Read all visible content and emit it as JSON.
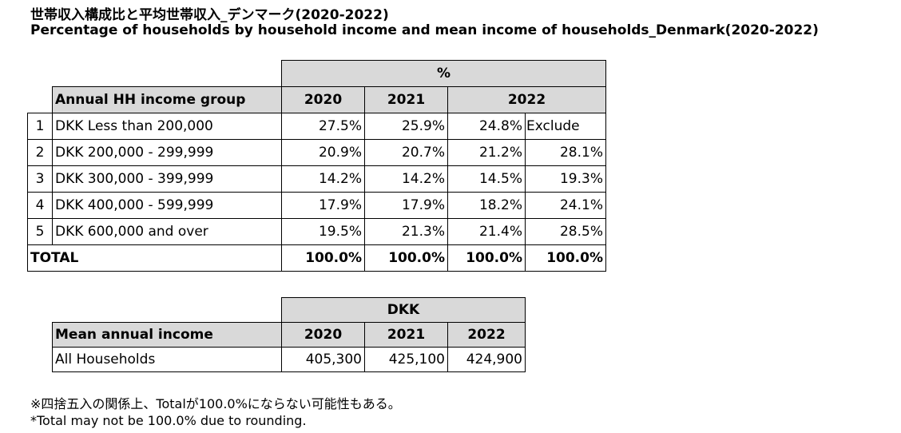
{
  "title_jp": "世帯収入構成比と平均世帯収入_デンマーク(2020-2022)",
  "title_en": "Percentage of households by household income and mean income of households_Denmark(2020-2022)",
  "table1": {
    "unit_header": "%",
    "group_header": "Annual HH income group",
    "years": [
      "2020",
      "2021",
      "2022"
    ],
    "rows": [
      {
        "idx": "1",
        "label": "DKK Less than 200,000",
        "v2020": "27.5%",
        "v2021": "25.9%",
        "v2022": "24.8%",
        "v2022x": "Exclude"
      },
      {
        "idx": "2",
        "label": "DKK 200,000 - 299,999",
        "v2020": "20.9%",
        "v2021": "20.7%",
        "v2022": "21.2%",
        "v2022x": "28.1%"
      },
      {
        "idx": "3",
        "label": "DKK 300,000 - 399,999",
        "v2020": "14.2%",
        "v2021": "14.2%",
        "v2022": "14.5%",
        "v2022x": "19.3%"
      },
      {
        "idx": "4",
        "label": "DKK 400,000 - 599,999",
        "v2020": "17.9%",
        "v2021": "17.9%",
        "v2022": "18.2%",
        "v2022x": "24.1%"
      },
      {
        "idx": "5",
        "label": "DKK 600,000 and over",
        "v2020": "19.5%",
        "v2021": "21.3%",
        "v2022": "21.4%",
        "v2022x": "28.5%"
      }
    ],
    "total": {
      "label": "TOTAL",
      "v2020": "100.0%",
      "v2021": "100.0%",
      "v2022": "100.0%",
      "v2022x": "100.0%"
    }
  },
  "table2": {
    "unit_header": "DKK",
    "label_header": "Mean annual income",
    "years": [
      "2020",
      "2021",
      "2022"
    ],
    "row": {
      "label": "All Households",
      "v2020": "405,300",
      "v2021": "425,100",
      "v2022": "424,900"
    }
  },
  "notes": {
    "jp": "※四捨五入の関係上、Totalが100.0%にならない可能性もある。",
    "en": "*Total may not be 100.0% due to rounding."
  }
}
